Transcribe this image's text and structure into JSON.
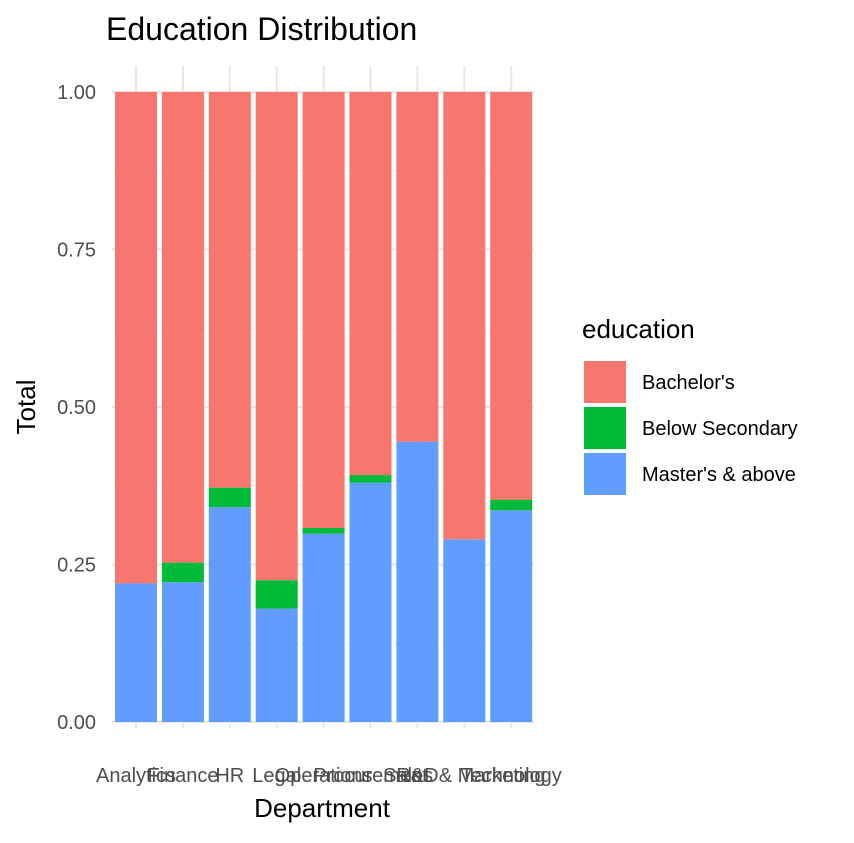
{
  "chart_data": {
    "type": "bar",
    "stacked": true,
    "title": "Education Distribution",
    "xlabel": "Department",
    "ylabel": "Total",
    "ylim": [
      0,
      1
    ],
    "yticks": [
      "0.00",
      "0.25",
      "0.50",
      "0.75",
      "1.00"
    ],
    "ytick_values": [
      0,
      0.25,
      0.5,
      0.75,
      1.0
    ],
    "grid": true,
    "legend": {
      "title": "education",
      "placement": "right"
    },
    "categories": [
      "Analytics",
      "Finance",
      "HR",
      "Legal",
      "Operations",
      "Procurement",
      "R&D",
      "Sales & Marketing",
      "Technology"
    ],
    "series": [
      {
        "name": "Bachelor's",
        "color": "#F8766D",
        "values": [
          0.78,
          0.747,
          0.628,
          0.775,
          0.692,
          0.608,
          0.555,
          0.71,
          0.647
        ]
      },
      {
        "name": "Below Secondary",
        "color": "#00BA38",
        "values": [
          0.0,
          0.031,
          0.031,
          0.045,
          0.009,
          0.012,
          0.0,
          0.0,
          0.017
        ]
      },
      {
        "name": "Master's & above",
        "color": "#619CFF",
        "values": [
          0.22,
          0.222,
          0.341,
          0.18,
          0.299,
          0.38,
          0.445,
          0.29,
          0.336
        ]
      }
    ]
  }
}
